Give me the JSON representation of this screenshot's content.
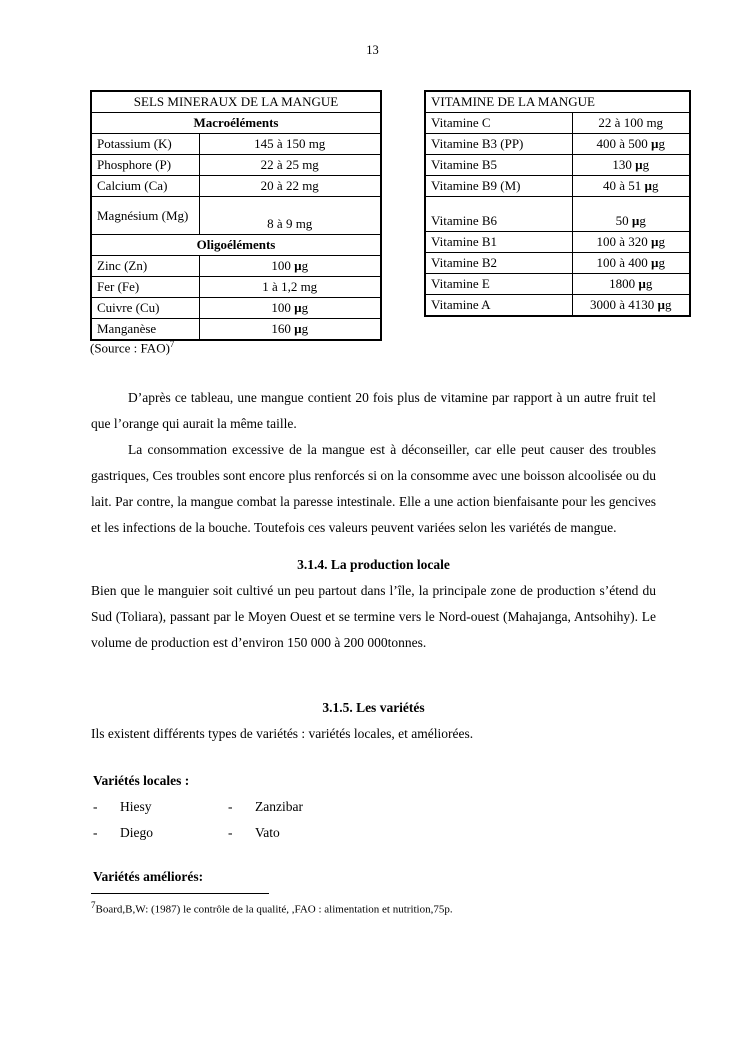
{
  "page": {
    "number": "13"
  },
  "minerals_table": {
    "title": "SELS MINERAUX DE LA MANGUE",
    "sections": [
      {
        "header": "Macroéléments",
        "rows": [
          {
            "label": "Potassium (K)",
            "value": "145 à 150 mg"
          },
          {
            "label": "Phosphore (P)",
            "value": "22 à 25 mg"
          },
          {
            "label": "Calcium (Ca)",
            "value": "20 à 22 mg"
          },
          {
            "label": "Magnésium (Mg)",
            "value": "8 à 9 mg"
          }
        ]
      },
      {
        "header": "Oligoéléments",
        "rows": [
          {
            "label": "Zinc (Zn)",
            "value": "100 µg"
          },
          {
            "label": "Fer (Fe)",
            "value": "1 à 1,2 mg"
          },
          {
            "label": "Cuivre (Cu)",
            "value": "100 µg"
          },
          {
            "label": "Manganèse",
            "value": "160 µg"
          }
        ]
      }
    ],
    "source_text": "(Source : FAO)",
    "source_ref": "7"
  },
  "vitamins_table": {
    "title": "VITAMINE DE LA MANGUE",
    "rows": [
      {
        "label": "Vitamine C",
        "value": "22 à 100 mg"
      },
      {
        "label": "Vitamine B3 (PP)",
        "value": "400 à 500 µg"
      },
      {
        "label": "Vitamine B5",
        "value": "130 µg"
      },
      {
        "label": "Vitamine B9 (M)",
        "value": "40 à 51 µg"
      },
      {
        "label": "Vitamine B6",
        "value": "50 µg"
      },
      {
        "label": "Vitamine B1",
        "value": "100 à 320 µg"
      },
      {
        "label": "Vitamine B2",
        "value": "100 à 400 µg"
      },
      {
        "label": "Vitamine E",
        "value": "1800 µg"
      },
      {
        "label": "Vitamine A",
        "value": "3000 à 4130 µg"
      }
    ]
  },
  "content": {
    "para_comparison": "D’après ce tableau, une mangue contient 20 fois plus de vitamine par rapport à un autre fruit tel que l’orange qui aurait la même taille.",
    "para_consommation": "La consommation excessive de la mangue est à déconseiller, car elle peut causer des troubles gastriques, Ces troubles sont encore plus renforcés si on la consomme avec une boisson alcoolisée ou du lait. Par contre, la mangue combat la paresse intestinale. Elle a une action bienfaisante pour les gencives et les infections de la bouche. Toutefois ces valeurs peuvent variées selon les variétés de mangue.",
    "heading_production": "3.1.4. La production locale",
    "para_production": "Bien que le manguier soit cultivé un peu partout dans l’île, la principale zone de production s’étend du Sud (Toliara), passant par le Moyen Ouest et se termine vers le Nord-ouest (Mahajanga, Antsohihy). Le volume de production est d’environ 150 000 à 200 000tonnes.",
    "heading_varietes": "3.1.5. Les variétés",
    "para_varietes": "Ils existent différents types de variétés : variétés locales, et améliorées.",
    "label_varietes_locales": "Variétés locales :",
    "dash": "-",
    "local_varieties": [
      {
        "col1": "Hiesy",
        "col2": "Zanzibar"
      },
      {
        "col1": "Diego",
        "col2": "Vato"
      }
    ],
    "label_varietes_ameliorees": "Variétés améliorés:"
  },
  "footnote": {
    "ref": "7",
    "text": "Board,B,W: (1987) le contrôle de la qualité, ,FAO : alimentation et nutrition,75p."
  }
}
